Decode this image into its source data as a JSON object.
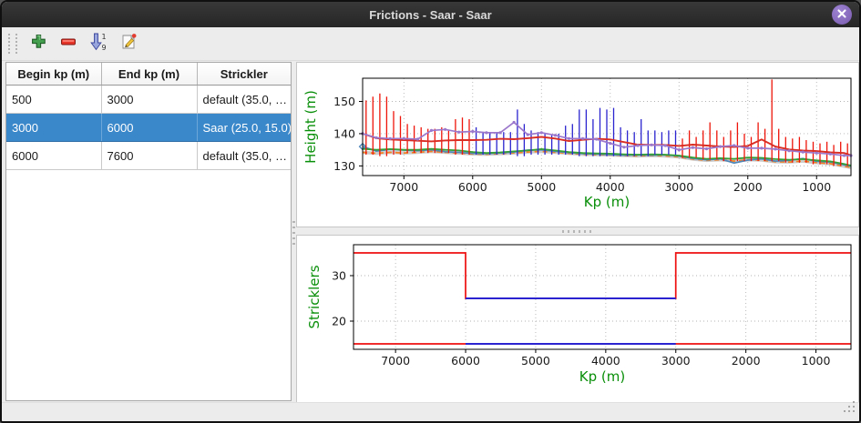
{
  "window": {
    "title": "Frictions - Saar - Saar",
    "titlebar_color": "#2c2c2c",
    "close_button_color": "#8465b3"
  },
  "toolbar": {
    "buttons": [
      {
        "name": "add",
        "icon": "plus-icon",
        "color": "#44a04e"
      },
      {
        "name": "remove",
        "icon": "minus-icon",
        "color": "#e8352a"
      },
      {
        "name": "sort",
        "icon": "sort-numeric-down-icon",
        "color": "#8a9ad8",
        "digits_top": "1",
        "digits_bottom": "9"
      },
      {
        "name": "edit",
        "icon": "edit-icon",
        "color": "#f0c53c"
      }
    ]
  },
  "table": {
    "columns": [
      "Begin kp (m)",
      "End kp (m)",
      "Strickler"
    ],
    "rows": [
      [
        "500",
        "3000",
        "default (35.0, …"
      ],
      [
        "3000",
        "6000",
        "Saar (25.0, 15.0)"
      ],
      [
        "6000",
        "7600",
        "default (35.0, …"
      ]
    ],
    "selected_row_index": 1,
    "selected_color": "#3a87c9"
  },
  "chart_data": [
    {
      "type": "line",
      "title": "",
      "xlabel": "Kp (m)",
      "ylabel": "Height (m)",
      "axis_label_color": "#0a8f0a",
      "xlim": [
        7600,
        500
      ],
      "x_inverted": true,
      "ylim": [
        127,
        157.2
      ],
      "xticks": [
        7000,
        6000,
        5000,
        4000,
        3000,
        2000,
        1000
      ],
      "yticks": [
        130,
        140,
        150
      ],
      "grid": true,
      "spike_colors": {
        "red": "#ee1409",
        "blue": "#2a23cf"
      },
      "spikes": {
        "red": [
          [
            7550,
            133.5,
            150.3
          ],
          [
            7450,
            133.5,
            151.5
          ],
          [
            7350,
            133,
            152.5
          ],
          [
            7250,
            133,
            151.5
          ],
          [
            7150,
            133.5,
            147
          ],
          [
            7050,
            133.5,
            145.5
          ],
          [
            6950,
            134,
            143
          ],
          [
            6850,
            134,
            142.5
          ],
          [
            6750,
            134,
            142
          ],
          [
            6650,
            134,
            141.5
          ],
          [
            6550,
            134,
            141.5
          ],
          [
            6450,
            134,
            142
          ],
          [
            6350,
            134,
            141
          ],
          [
            6250,
            133.5,
            144.5
          ],
          [
            6150,
            133.5,
            145
          ],
          [
            6050,
            133.5,
            144.5
          ],
          [
            2950,
            132.5,
            138.5
          ],
          [
            2850,
            132.5,
            141
          ],
          [
            2750,
            132.5,
            139
          ],
          [
            2650,
            132,
            141
          ],
          [
            2550,
            132,
            143.5
          ],
          [
            2450,
            132,
            141
          ],
          [
            2350,
            131.5,
            139
          ],
          [
            2250,
            131.5,
            141
          ],
          [
            2150,
            131.5,
            143.5
          ],
          [
            2050,
            131.5,
            140
          ],
          [
            1950,
            131.5,
            139
          ],
          [
            1850,
            131.5,
            143.5
          ],
          [
            1750,
            131.5,
            141.5
          ],
          [
            1650,
            131.5,
            156.8
          ],
          [
            1550,
            131.5,
            141.5
          ],
          [
            1450,
            131,
            139
          ],
          [
            1350,
            131,
            138.5
          ],
          [
            1250,
            131,
            139
          ],
          [
            1150,
            131,
            138
          ],
          [
            1050,
            130.5,
            137.5
          ],
          [
            950,
            130.5,
            137
          ],
          [
            850,
            130.5,
            137.5
          ],
          [
            750,
            130,
            136.5
          ],
          [
            650,
            130,
            137.5
          ],
          [
            550,
            130,
            137
          ]
        ],
        "blue": [
          [
            5950,
            133.5,
            142
          ],
          [
            5850,
            133.5,
            140.5
          ],
          [
            5750,
            133.5,
            140.5
          ],
          [
            5650,
            133.5,
            140.5
          ],
          [
            5550,
            133.5,
            140.5
          ],
          [
            5450,
            133.5,
            140.5
          ],
          [
            5350,
            133,
            147.5
          ],
          [
            5250,
            133,
            143
          ],
          [
            5150,
            133.5,
            141
          ],
          [
            5050,
            133.5,
            140.5
          ],
          [
            4950,
            133.5,
            140
          ],
          [
            4850,
            133.5,
            139.5
          ],
          [
            4750,
            133.5,
            140
          ],
          [
            4650,
            133.5,
            142.5
          ],
          [
            4550,
            133.5,
            143
          ],
          [
            4450,
            133,
            147.5
          ],
          [
            4350,
            133,
            147.5
          ],
          [
            4250,
            133,
            144.5
          ],
          [
            4150,
            133,
            148
          ],
          [
            4050,
            133,
            147.5
          ],
          [
            3950,
            133,
            148
          ],
          [
            3850,
            133,
            142
          ],
          [
            3750,
            133,
            141
          ],
          [
            3650,
            133,
            140.5
          ],
          [
            3550,
            133,
            144.5
          ],
          [
            3450,
            133,
            141
          ],
          [
            3350,
            133.5,
            141
          ],
          [
            3250,
            133.5,
            140.5
          ],
          [
            3150,
            133.5,
            141
          ],
          [
            3050,
            133.5,
            141
          ]
        ]
      },
      "x_common": [
        7600,
        7400,
        7200,
        7000,
        6800,
        6600,
        6400,
        6200,
        6000,
        5800,
        5600,
        5400,
        5200,
        5000,
        4800,
        4600,
        4400,
        4200,
        4000,
        3800,
        3600,
        3400,
        3200,
        3000,
        2800,
        2600,
        2400,
        2200,
        2000,
        1800,
        1600,
        1400,
        1200,
        1000,
        800,
        600,
        500
      ],
      "series": [
        {
          "name": "orange-dashed",
          "color": "#f5821f",
          "width": 1.7,
          "dash": "5 4",
          "backing": "#cccccc",
          "z": 0,
          "y": [
            134.2,
            133.9,
            134.2,
            134,
            134.2,
            134.5,
            134.2,
            134,
            133.7,
            133.6,
            133.8,
            134,
            134.3,
            134.5,
            134.2,
            133.9,
            133.6,
            133.5,
            133.4,
            133.2,
            133.1,
            133.2,
            133.1,
            132.8,
            132.1,
            131.7,
            131.9,
            131.5,
            131.9,
            131.8,
            131.3,
            131.2,
            131.5,
            131,
            130.7,
            129.9,
            129.5
          ]
        },
        {
          "name": "blue-line",
          "color": "#4f87ba",
          "width": 1.7,
          "start_marker": "diamond",
          "z": 0,
          "y": [
            136,
            134.6,
            135.1,
            134.9,
            134.7,
            135,
            134.4,
            134.2,
            133.9,
            133.8,
            134,
            134.3,
            134.9,
            135,
            134.5,
            134.1,
            133.8,
            133.7,
            133.5,
            133.3,
            133.4,
            133.3,
            133.4,
            133,
            132.3,
            131.9,
            132.2,
            130.9,
            131.8,
            132.2,
            131.5,
            131.7,
            132.3,
            131.4,
            131.2,
            130.3,
            129.9
          ]
        },
        {
          "name": "green-line",
          "color": "#35a035",
          "width": 1.8,
          "z": 0,
          "y": [
            135.3,
            135,
            135.2,
            135,
            135,
            135.3,
            135,
            134.8,
            134.3,
            134,
            134.2,
            134.5,
            134.8,
            135.2,
            134.8,
            134.3,
            134,
            133.9,
            133.8,
            133.6,
            133.5,
            133.6,
            133.5,
            133.2,
            132.6,
            132.2,
            132.4,
            132.2,
            132.6,
            132.5,
            132.1,
            131.9,
            132.1,
            131.7,
            131.4,
            130.6,
            130.1
          ]
        },
        {
          "name": "red-line",
          "color": "#d92c22",
          "width": 1.9,
          "z": 2,
          "y": [
            140,
            138.6,
            138.2,
            138,
            137.8,
            137.6,
            137.9,
            138,
            138,
            138.1,
            138.4,
            138.3,
            138.6,
            139,
            138.5,
            137.7,
            138.1,
            138.4,
            138.2,
            137.4,
            136.6,
            136.5,
            136.5,
            136.2,
            136.6,
            136.3,
            136,
            135.9,
            136.2,
            138.2,
            136,
            135.1,
            134.8,
            134.6,
            134.2,
            134,
            133.3
          ]
        },
        {
          "name": "purple-line",
          "color": "#9b78cb",
          "width": 1.7,
          "markers": true,
          "z": 2,
          "y": [
            140,
            138.7,
            138.5,
            138.5,
            138.3,
            141,
            141.3,
            140.5,
            140.7,
            140.3,
            140.3,
            143.5,
            139.7,
            140.3,
            139.5,
            138.5,
            138.5,
            138.3,
            137,
            135.8,
            136.3,
            136.5,
            136.3,
            135,
            135.7,
            135.3,
            136,
            136.3,
            135.5,
            135.5,
            135.2,
            134.7,
            134.3,
            134,
            133.7,
            133.2,
            133.2
          ]
        }
      ]
    },
    {
      "type": "step",
      "title": "",
      "xlabel": "Kp (m)",
      "ylabel": "Stricklers",
      "axis_label_color": "#0a8f0a",
      "xlim": [
        7600,
        500
      ],
      "x_inverted": true,
      "ylim": [
        13.8,
        36.8
      ],
      "xticks": [
        7000,
        6000,
        5000,
        4000,
        3000,
        2000,
        1000
      ],
      "yticks": [
        20,
        30
      ],
      "grid": true,
      "series": [
        {
          "name": "default-main-channel",
          "color": "#ee0e0e",
          "width": 1.7,
          "z": 0,
          "x": [
            7600,
            6000,
            6000,
            3000,
            3000,
            500
          ],
          "y": [
            35,
            35,
            25,
            25,
            35,
            35
          ]
        },
        {
          "name": "default-floodplain",
          "color": "#ee0e0e",
          "width": 1.7,
          "z": 0,
          "x": [
            7600,
            500
          ],
          "y": [
            15,
            15
          ]
        },
        {
          "name": "saar-main-channel",
          "color": "#2a23cf",
          "width": 2,
          "z": 2,
          "x": [
            6000,
            3000
          ],
          "y": [
            25,
            25
          ]
        },
        {
          "name": "saar-floodplain",
          "color": "#2a23cf",
          "width": 2,
          "z": 2,
          "x": [
            6000,
            3000
          ],
          "y": [
            15,
            15
          ]
        }
      ]
    }
  ]
}
